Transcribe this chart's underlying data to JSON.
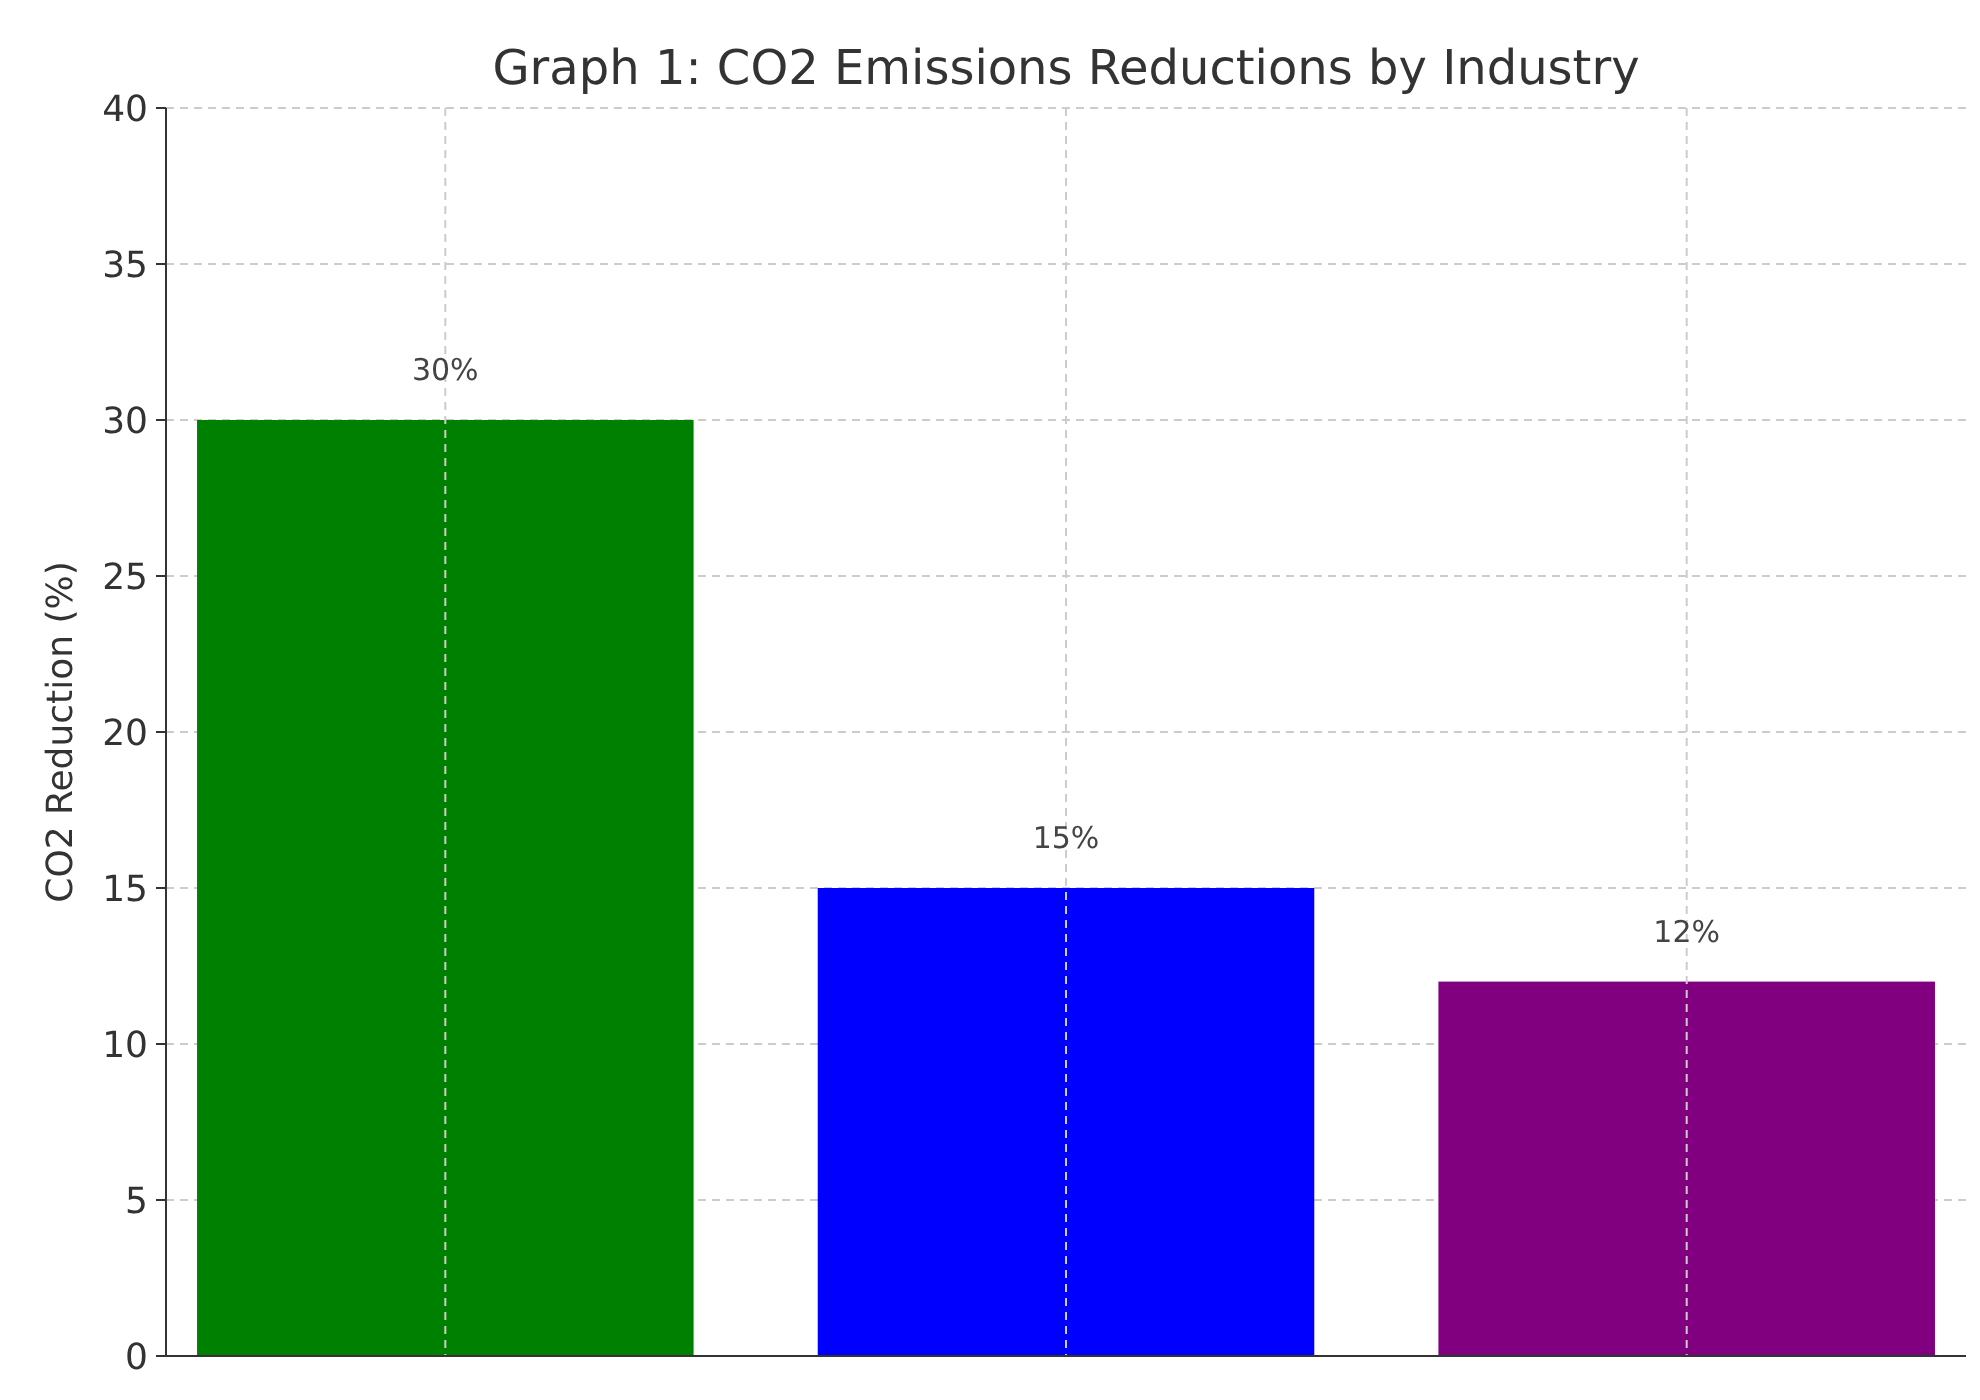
{
  "chart_data": {
    "type": "bar",
    "title": "Graph 1: CO2 Emissions Reductions by Industry",
    "ylabel": "CO2 Reduction (%)",
    "categories": [
      null,
      null,
      null
    ],
    "values": [
      30,
      15,
      12
    ],
    "colors": [
      "#008000",
      "#0000ff",
      "#800080"
    ],
    "value_labels": [
      "30%",
      "15%",
      "12%"
    ],
    "ylim": [
      0,
      40
    ],
    "yticks": [
      0,
      5,
      10,
      15,
      20,
      25,
      30,
      35,
      40
    ],
    "grid": true
  }
}
